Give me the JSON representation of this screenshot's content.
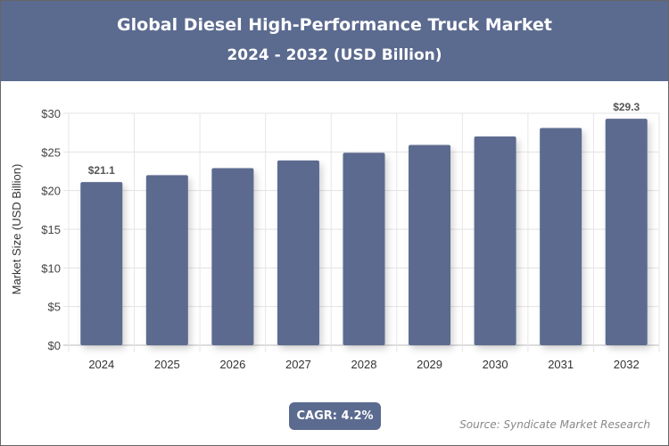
{
  "header": {
    "title": "Global Diesel High-Performance Truck Market",
    "subtitle": "2024 - 2032 (USD Billion)"
  },
  "chart_data": {
    "type": "bar",
    "categories": [
      "2024",
      "2025",
      "2026",
      "2027",
      "2028",
      "2029",
      "2030",
      "2031",
      "2032"
    ],
    "values": [
      21.1,
      22.0,
      22.9,
      23.9,
      24.9,
      25.9,
      27.0,
      28.1,
      29.3
    ],
    "data_labels": {
      "0": "$21.1",
      "8": "$29.3"
    },
    "ylabel": "Market Size (USD Billion)",
    "xlabel": "",
    "ylim": [
      0,
      30
    ],
    "yticks": [
      "$0",
      "$5",
      "$10",
      "$15",
      "$20",
      "$25",
      "$30"
    ],
    "grid": true,
    "bar_color": "#5b6a8f"
  },
  "footer": {
    "cagr": "CAGR: 4.2%",
    "source": "Source: Syndicate Market Research"
  }
}
